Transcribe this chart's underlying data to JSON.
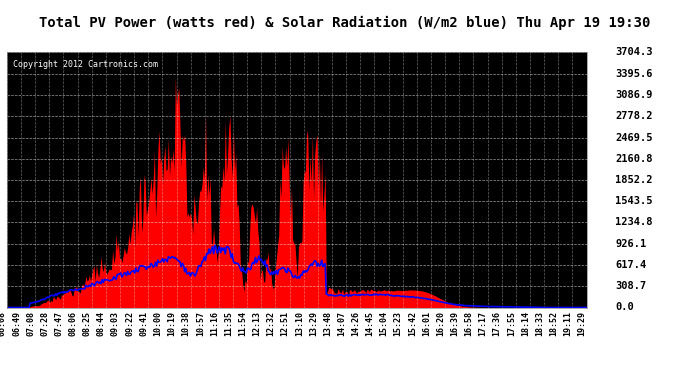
{
  "title": "Total PV Power (watts red) & Solar Radiation (W/m2 blue) Thu Apr 19 19:30",
  "copyright": "Copyright 2012 Cartronics.com",
  "y_max": 3704.3,
  "y_min": 0.0,
  "y_ticks": [
    0.0,
    308.7,
    617.4,
    926.1,
    1234.8,
    1543.5,
    1852.2,
    2160.8,
    2469.5,
    2778.2,
    3086.9,
    3395.6,
    3704.3
  ],
  "x_labels": [
    "06:08",
    "06:49",
    "07:08",
    "07:28",
    "07:47",
    "08:06",
    "08:25",
    "08:44",
    "09:03",
    "09:22",
    "09:41",
    "10:00",
    "10:19",
    "10:38",
    "10:57",
    "11:16",
    "11:35",
    "11:54",
    "12:13",
    "12:32",
    "12:51",
    "13:10",
    "13:29",
    "13:48",
    "14:07",
    "14:26",
    "14:45",
    "15:04",
    "15:23",
    "15:42",
    "16:01",
    "16:20",
    "16:39",
    "16:58",
    "17:17",
    "17:36",
    "17:55",
    "18:14",
    "18:33",
    "18:52",
    "19:11",
    "19:29"
  ],
  "bg_color": "#000000",
  "red_color": "#ff0000",
  "blue_color": "#0000ff",
  "title_bg": "#ffffff",
  "grid_color": "#ffffff",
  "n_points": 500
}
